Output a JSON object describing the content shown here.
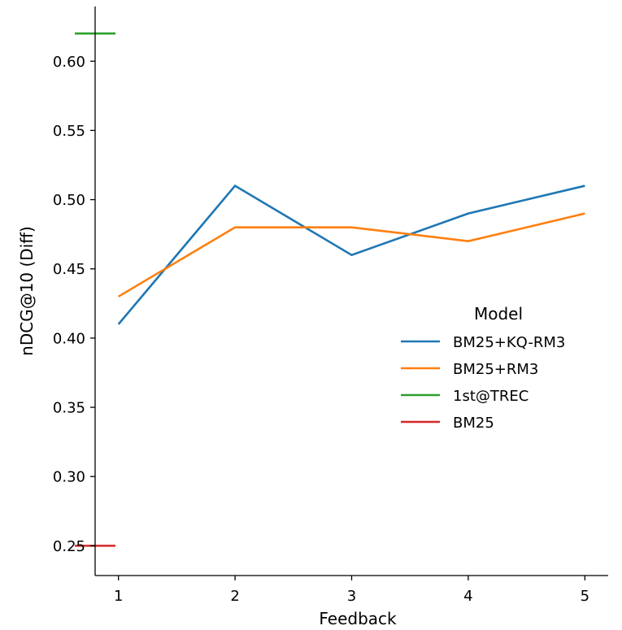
{
  "chart_data": {
    "type": "line",
    "title": "",
    "xlabel": "Feedback",
    "ylabel": "nDCG@10 (Diff)",
    "x": [
      1,
      2,
      3,
      4,
      5
    ],
    "xticks": [
      "1",
      "2",
      "3",
      "4",
      "5"
    ],
    "xlim": [
      0.8,
      5.2
    ],
    "ylim": [
      0.2285,
      0.6395
    ],
    "yticks": [
      "0.25",
      "0.30",
      "0.35",
      "0.40",
      "0.45",
      "0.50",
      "0.55",
      "0.60"
    ],
    "grid": false,
    "series": [
      {
        "name": "BM25+KQ-RM3",
        "color": "#1f77b4",
        "values": [
          0.41,
          0.51,
          0.46,
          0.49,
          0.51
        ]
      },
      {
        "name": "BM25+RM3",
        "color": "#ff7f0e",
        "values": [
          0.43,
          0.48,
          0.48,
          0.47,
          0.49
        ]
      }
    ],
    "reference_lines": [
      {
        "name": "1st@TREC",
        "color": "#2ca02c",
        "y": 0.62
      },
      {
        "name": "BM25",
        "color": "#d62728",
        "y": 0.25
      }
    ],
    "legend": {
      "title": "Model",
      "placement": "center-right"
    }
  }
}
